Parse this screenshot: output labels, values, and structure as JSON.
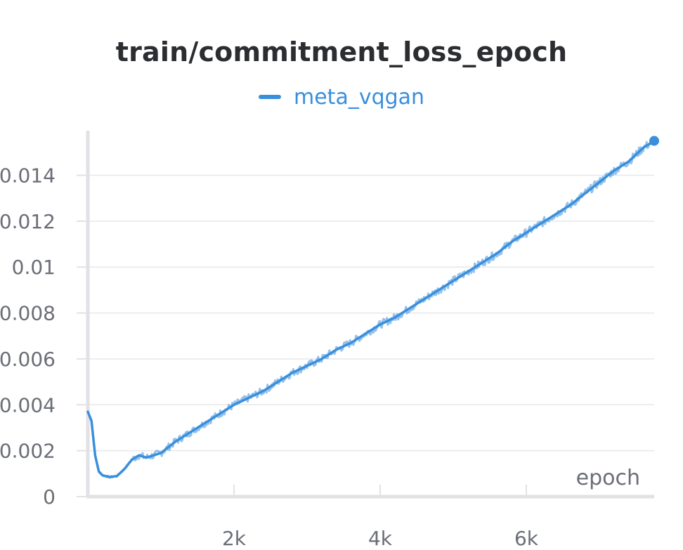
{
  "chart_data": {
    "type": "line",
    "title": "train/commitment_loss_epoch",
    "xlabel": "epoch",
    "ylabel": "",
    "xlim": [
      0,
      7750
    ],
    "ylim": [
      0,
      0.0157
    ],
    "x_ticks": [
      {
        "value": 2000,
        "label": "2k"
      },
      {
        "value": 4000,
        "label": "4k"
      },
      {
        "value": 6000,
        "label": "6k"
      }
    ],
    "y_ticks": [
      {
        "value": 0,
        "label": "0"
      },
      {
        "value": 0.002,
        "label": "0.002"
      },
      {
        "value": 0.004,
        "label": "0.004"
      },
      {
        "value": 0.006,
        "label": "0.006"
      },
      {
        "value": 0.008,
        "label": "0.008"
      },
      {
        "value": 0.01,
        "label": "0.01"
      },
      {
        "value": 0.012,
        "label": "0.012"
      },
      {
        "value": 0.014,
        "label": "0.014"
      }
    ],
    "grid": true,
    "legend_position": "top-center",
    "series": [
      {
        "name": "meta_vqgan",
        "color": "#3a8fdc",
        "x": [
          0,
          50,
          100,
          150,
          200,
          300,
          400,
          500,
          600,
          700,
          800,
          900,
          1000,
          1200,
          1400,
          1600,
          1800,
          2000,
          2200,
          2400,
          2600,
          2800,
          3000,
          3200,
          3400,
          3600,
          3800,
          4000,
          4200,
          4400,
          4600,
          4800,
          5000,
          5200,
          5400,
          5600,
          5800,
          6000,
          6200,
          6400,
          6600,
          6800,
          7000,
          7200,
          7400,
          7600,
          7750
        ],
        "y": [
          0.0037,
          0.0033,
          0.0018,
          0.0011,
          0.00093,
          0.00085,
          0.0009,
          0.0012,
          0.0016,
          0.0018,
          0.0017,
          0.0018,
          0.0019,
          0.0024,
          0.0028,
          0.0032,
          0.0036,
          0.004,
          0.0043,
          0.0046,
          0.005,
          0.0054,
          0.0057,
          0.006,
          0.0064,
          0.0067,
          0.0071,
          0.0075,
          0.0078,
          0.0082,
          0.0086,
          0.009,
          0.0094,
          0.0098,
          0.0102,
          0.0106,
          0.0111,
          0.0115,
          0.0119,
          0.0123,
          0.0127,
          0.0132,
          0.0137,
          0.0142,
          0.0146,
          0.0152,
          0.0155
        ]
      }
    ]
  }
}
